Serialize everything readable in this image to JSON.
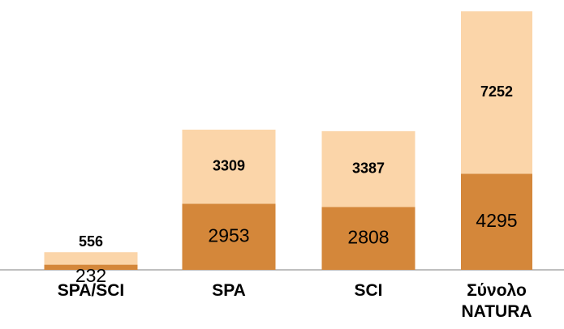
{
  "chart_data": {
    "type": "stacked_bar",
    "categories": [
      "SPA/SCI",
      "SPA",
      "SCI",
      "Σύνολο NATURA"
    ],
    "series": [
      {
        "color": "#d4873a",
        "values": [
          232,
          2953,
          2808,
          4295
        ]
      },
      {
        "color": "#fbd5a9",
        "values": [
          556,
          3309,
          3387,
          7252
        ]
      }
    ]
  }
}
